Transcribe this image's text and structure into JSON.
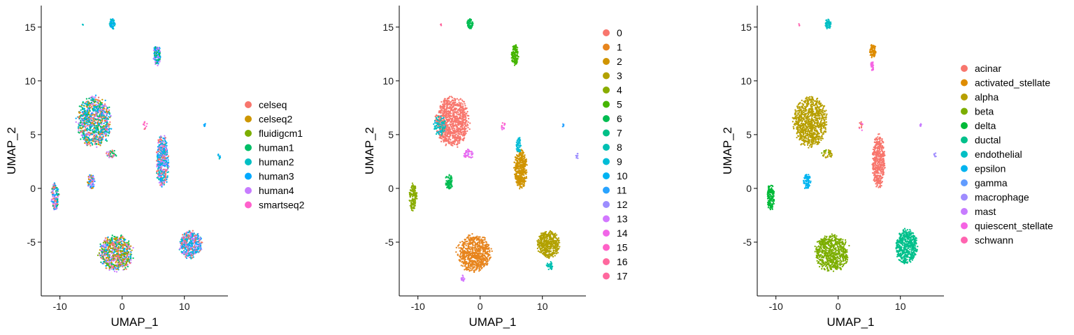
{
  "chart_data": [
    {
      "type": "scatter",
      "panel": "batch",
      "xlabel": "UMAP_1",
      "ylabel": "UMAP_2",
      "xlim": [
        -13,
        17
      ],
      "ylim": [
        -10,
        17
      ],
      "xticks": [
        -10,
        0,
        10
      ],
      "yticks": [
        -5,
        0,
        5,
        10,
        15
      ],
      "grid": false,
      "legend_position": "right",
      "legend": [
        {
          "label": "celseq",
          "color": "#F8766D"
        },
        {
          "label": "celseq2",
          "color": "#CD9600"
        },
        {
          "label": "fluidigcm1",
          "color": "#7CAE00"
        },
        {
          "label": "human1",
          "color": "#00BE67"
        },
        {
          "label": "human2",
          "color": "#00BFC4"
        },
        {
          "label": "human3",
          "color": "#00A9FF"
        },
        {
          "label": "human4",
          "color": "#C77CFF"
        },
        {
          "label": "smartseq2",
          "color": "#FF61CC"
        }
      ],
      "clusters": [
        {
          "cx": -4.5,
          "cy": 6.2,
          "rx": 2.6,
          "ry": 2.2,
          "n": 900,
          "colors": [
            "#00A9FF",
            "#C77CFF",
            "#00BFC4",
            "#00BE67",
            "#F8766D",
            "#CD9600"
          ]
        },
        {
          "cx": -1.0,
          "cy": -6.0,
          "rx": 2.6,
          "ry": 1.6,
          "n": 700,
          "colors": [
            "#00A9FF",
            "#C77CFF",
            "#F8766D",
            "#00BE67",
            "#CD9600",
            "#7CAE00"
          ]
        },
        {
          "cx": 11.0,
          "cy": -5.2,
          "rx": 1.7,
          "ry": 1.2,
          "n": 450,
          "colors": [
            "#00A9FF",
            "#C77CFF",
            "#00BFC4",
            "#F8766D"
          ]
        },
        {
          "cx": 6.5,
          "cy": 2.5,
          "rx": 0.95,
          "ry": 2.3,
          "n": 450,
          "colors": [
            "#00A9FF",
            "#00BFC4",
            "#C77CFF",
            "#F8766D"
          ]
        },
        {
          "cx": 5.6,
          "cy": 12.4,
          "rx": 0.55,
          "ry": 0.9,
          "n": 140,
          "colors": [
            "#00A9FF",
            "#C77CFF",
            "#00BE67"
          ]
        },
        {
          "cx": -1.6,
          "cy": 15.3,
          "rx": 0.45,
          "ry": 0.45,
          "n": 60,
          "colors": [
            "#00A9FF",
            "#00BFC4"
          ]
        },
        {
          "cx": -10.8,
          "cy": -0.8,
          "rx": 0.6,
          "ry": 1.2,
          "n": 140,
          "colors": [
            "#00A9FF",
            "#C77CFF",
            "#F8766D",
            "#00BE67"
          ]
        },
        {
          "cx": -5.0,
          "cy": 0.6,
          "rx": 0.55,
          "ry": 0.7,
          "n": 80,
          "colors": [
            "#00A9FF",
            "#C77CFF",
            "#CD9600"
          ]
        },
        {
          "cx": -1.8,
          "cy": 3.2,
          "rx": 0.9,
          "ry": 0.4,
          "n": 40,
          "colors": [
            "#F8766D",
            "#C77CFF",
            "#00BE67"
          ]
        },
        {
          "cx": 3.7,
          "cy": 5.8,
          "rx": 0.4,
          "ry": 0.4,
          "n": 12,
          "colors": [
            "#FF61CC",
            "#F8766D"
          ]
        },
        {
          "cx": 13.3,
          "cy": 5.9,
          "rx": 0.15,
          "ry": 0.15,
          "n": 6,
          "colors": [
            "#00A9FF"
          ]
        },
        {
          "cx": 15.6,
          "cy": 3.0,
          "rx": 0.2,
          "ry": 0.3,
          "n": 8,
          "colors": [
            "#00A9FF",
            "#00BFC4"
          ]
        },
        {
          "cx": -6.3,
          "cy": 15.2,
          "rx": 0.1,
          "ry": 0.1,
          "n": 3,
          "colors": [
            "#00BFC4"
          ]
        }
      ]
    },
    {
      "type": "scatter",
      "panel": "cluster",
      "xlabel": "UMAP_1",
      "ylabel": "UMAP_2",
      "xlim": [
        -13,
        17
      ],
      "ylim": [
        -10,
        17
      ],
      "xticks": [
        -10,
        0,
        10
      ],
      "yticks": [
        -5,
        0,
        5,
        10,
        15
      ],
      "grid": false,
      "legend_position": "right",
      "legend": [
        {
          "label": "0",
          "color": "#F8766D"
        },
        {
          "label": "1",
          "color": "#E7851E"
        },
        {
          "label": "2",
          "color": "#D09400"
        },
        {
          "label": "3",
          "color": "#B2A100"
        },
        {
          "label": "4",
          "color": "#89AC00"
        },
        {
          "label": "5",
          "color": "#45B500"
        },
        {
          "label": "6",
          "color": "#00BC51"
        },
        {
          "label": "7",
          "color": "#00C087"
        },
        {
          "label": "8",
          "color": "#00C0B2"
        },
        {
          "label": "9",
          "color": "#00BCD6"
        },
        {
          "label": "10",
          "color": "#00B3F2"
        },
        {
          "label": "11",
          "color": "#29A3FF"
        },
        {
          "label": "12",
          "color": "#9C8DFF"
        },
        {
          "label": "13",
          "color": "#D277FF"
        },
        {
          "label": "14",
          "color": "#F166E8"
        },
        {
          "label": "15",
          "color": "#FF61C7"
        },
        {
          "label": "16",
          "color": "#FF689E"
        },
        {
          "label": "17",
          "color": "#FF689E"
        }
      ],
      "clusters": [
        {
          "cx": -4.5,
          "cy": 6.2,
          "rx": 2.6,
          "ry": 2.2,
          "n": 900,
          "colors": [
            "#F8766D"
          ]
        },
        {
          "cx": -6.5,
          "cy": 5.8,
          "rx": 0.9,
          "ry": 1.0,
          "n": 80,
          "colors": [
            "#00C0B2",
            "#00BCD6"
          ]
        },
        {
          "cx": -1.0,
          "cy": -6.0,
          "rx": 2.6,
          "ry": 1.6,
          "n": 700,
          "colors": [
            "#E7851E"
          ]
        },
        {
          "cx": 11.0,
          "cy": -5.2,
          "rx": 1.7,
          "ry": 1.2,
          "n": 450,
          "colors": [
            "#B2A100"
          ]
        },
        {
          "cx": 11.2,
          "cy": -7.2,
          "rx": 0.5,
          "ry": 0.4,
          "n": 40,
          "colors": [
            "#00C0B2"
          ]
        },
        {
          "cx": 6.5,
          "cy": 1.8,
          "rx": 0.95,
          "ry": 1.7,
          "n": 400,
          "colors": [
            "#D09400"
          ]
        },
        {
          "cx": 6.2,
          "cy": 4.0,
          "rx": 0.4,
          "ry": 0.7,
          "n": 50,
          "colors": [
            "#00BCD6"
          ]
        },
        {
          "cx": 5.6,
          "cy": 12.4,
          "rx": 0.55,
          "ry": 0.9,
          "n": 140,
          "colors": [
            "#45B500"
          ]
        },
        {
          "cx": -1.6,
          "cy": 15.3,
          "rx": 0.45,
          "ry": 0.45,
          "n": 60,
          "colors": [
            "#00BC51"
          ]
        },
        {
          "cx": -10.8,
          "cy": -0.8,
          "rx": 0.6,
          "ry": 1.2,
          "n": 140,
          "colors": [
            "#89AC00"
          ]
        },
        {
          "cx": -5.0,
          "cy": 0.6,
          "rx": 0.55,
          "ry": 0.7,
          "n": 80,
          "colors": [
            "#00BC51"
          ]
        },
        {
          "cx": -1.8,
          "cy": 3.2,
          "rx": 0.9,
          "ry": 0.4,
          "n": 40,
          "colors": [
            "#D277FF",
            "#F166E8"
          ]
        },
        {
          "cx": -2.8,
          "cy": -8.4,
          "rx": 0.3,
          "ry": 0.3,
          "n": 20,
          "colors": [
            "#D277FF"
          ]
        },
        {
          "cx": 3.7,
          "cy": 5.8,
          "rx": 0.4,
          "ry": 0.4,
          "n": 12,
          "colors": [
            "#FF61C7",
            "#F166E8"
          ]
        },
        {
          "cx": 13.3,
          "cy": 5.9,
          "rx": 0.15,
          "ry": 0.15,
          "n": 6,
          "colors": [
            "#29A3FF"
          ]
        },
        {
          "cx": 15.6,
          "cy": 3.0,
          "rx": 0.2,
          "ry": 0.3,
          "n": 8,
          "colors": [
            "#9C8DFF"
          ]
        },
        {
          "cx": -6.3,
          "cy": 15.2,
          "rx": 0.1,
          "ry": 0.1,
          "n": 3,
          "colors": [
            "#FF689E"
          ]
        }
      ]
    },
    {
      "type": "scatter",
      "panel": "cell_type",
      "xlabel": "UMAP_1",
      "ylabel": "UMAP_2",
      "xlim": [
        -13,
        17
      ],
      "ylim": [
        -10,
        17
      ],
      "xticks": [
        -10,
        0,
        10
      ],
      "yticks": [
        -5,
        0,
        5,
        10,
        15
      ],
      "grid": false,
      "legend_position": "right",
      "legend": [
        {
          "label": "acinar",
          "color": "#F8766D"
        },
        {
          "label": "activated_stellate",
          "color": "#DE8C00"
        },
        {
          "label": "alpha",
          "color": "#B79F00"
        },
        {
          "label": "beta",
          "color": "#7CAE00"
        },
        {
          "label": "delta",
          "color": "#00BA38"
        },
        {
          "label": "ductal",
          "color": "#00C08B"
        },
        {
          "label": "endothelial",
          "color": "#00BFC4"
        },
        {
          "label": "epsilon",
          "color": "#00B4F0"
        },
        {
          "label": "gamma",
          "color": "#619CFF"
        },
        {
          "label": "macrophage",
          "color": "#9F8CFF"
        },
        {
          "label": "mast",
          "color": "#C77CFF"
        },
        {
          "label": "quiescent_stellate",
          "color": "#F564E3"
        },
        {
          "label": "schwann",
          "color": "#FF64B0"
        }
      ],
      "clusters": [
        {
          "cx": -4.5,
          "cy": 6.2,
          "rx": 2.6,
          "ry": 2.2,
          "n": 900,
          "colors": [
            "#B79F00"
          ]
        },
        {
          "cx": -1.0,
          "cy": -6.0,
          "rx": 2.6,
          "ry": 1.6,
          "n": 700,
          "colors": [
            "#7CAE00"
          ]
        },
        {
          "cx": 11.0,
          "cy": -5.4,
          "rx": 1.7,
          "ry": 1.5,
          "n": 500,
          "colors": [
            "#00C08B"
          ]
        },
        {
          "cx": 6.5,
          "cy": 2.5,
          "rx": 0.95,
          "ry": 2.3,
          "n": 450,
          "colors": [
            "#F8766D"
          ]
        },
        {
          "cx": 5.6,
          "cy": 12.8,
          "rx": 0.5,
          "ry": 0.6,
          "n": 100,
          "colors": [
            "#DE8C00"
          ]
        },
        {
          "cx": 5.5,
          "cy": 11.4,
          "rx": 0.25,
          "ry": 0.5,
          "n": 30,
          "colors": [
            "#F564E3"
          ]
        },
        {
          "cx": -1.6,
          "cy": 15.3,
          "rx": 0.45,
          "ry": 0.45,
          "n": 60,
          "colors": [
            "#00BFC4"
          ]
        },
        {
          "cx": -10.8,
          "cy": -0.8,
          "rx": 0.6,
          "ry": 1.2,
          "n": 140,
          "colors": [
            "#00BA38"
          ]
        },
        {
          "cx": -5.0,
          "cy": 0.6,
          "rx": 0.55,
          "ry": 0.7,
          "n": 80,
          "colors": [
            "#00B4F0"
          ]
        },
        {
          "cx": -1.8,
          "cy": 3.2,
          "rx": 0.9,
          "ry": 0.4,
          "n": 40,
          "colors": [
            "#B79F00",
            "#7CAE00"
          ]
        },
        {
          "cx": 3.7,
          "cy": 5.8,
          "rx": 0.4,
          "ry": 0.4,
          "n": 12,
          "colors": [
            "#F8766D",
            "#F564E3"
          ]
        },
        {
          "cx": 13.3,
          "cy": 5.9,
          "rx": 0.15,
          "ry": 0.15,
          "n": 6,
          "colors": [
            "#C77CFF"
          ]
        },
        {
          "cx": 15.6,
          "cy": 3.0,
          "rx": 0.2,
          "ry": 0.3,
          "n": 8,
          "colors": [
            "#9F8CFF"
          ]
        },
        {
          "cx": -6.3,
          "cy": 15.2,
          "rx": 0.1,
          "ry": 0.1,
          "n": 3,
          "colors": [
            "#FF64B0"
          ]
        }
      ]
    }
  ]
}
